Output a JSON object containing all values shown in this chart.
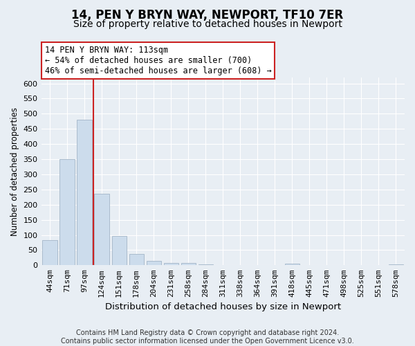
{
  "title1": "14, PEN Y BRYN WAY, NEWPORT, TF10 7ER",
  "title2": "Size of property relative to detached houses in Newport",
  "xlabel": "Distribution of detached houses by size in Newport",
  "ylabel": "Number of detached properties",
  "categories": [
    "44sqm",
    "71sqm",
    "97sqm",
    "124sqm",
    "151sqm",
    "178sqm",
    "204sqm",
    "231sqm",
    "258sqm",
    "284sqm",
    "311sqm",
    "338sqm",
    "364sqm",
    "391sqm",
    "418sqm",
    "445sqm",
    "471sqm",
    "498sqm",
    "525sqm",
    "551sqm",
    "578sqm"
  ],
  "values": [
    82,
    350,
    480,
    235,
    97,
    37,
    15,
    8,
    8,
    2,
    1,
    0,
    0,
    0,
    5,
    0,
    0,
    0,
    0,
    0,
    4
  ],
  "bar_color": "#ccdcec",
  "bar_edge_color": "#aabbcc",
  "annotation_line1": "14 PEN Y BRYN WAY: 113sqm",
  "annotation_line2": "← 54% of detached houses are smaller (700)",
  "annotation_line3": "46% of semi-detached houses are larger (608) →",
  "annotation_box_color": "#ffffff",
  "annotation_border_color": "#cc2222",
  "vline_color": "#cc2222",
  "ylim": [
    0,
    620
  ],
  "yticks": [
    0,
    50,
    100,
    150,
    200,
    250,
    300,
    350,
    400,
    450,
    500,
    550,
    600
  ],
  "footer": "Contains HM Land Registry data © Crown copyright and database right 2024.\nContains public sector information licensed under the Open Government Licence v3.0.",
  "background_color": "#e8eef4",
  "grid_color": "#ffffff",
  "title1_fontsize": 12,
  "title2_fontsize": 10,
  "xlabel_fontsize": 9.5,
  "ylabel_fontsize": 8.5,
  "tick_fontsize": 8,
  "annotation_fontsize": 8.5,
  "footer_fontsize": 7
}
